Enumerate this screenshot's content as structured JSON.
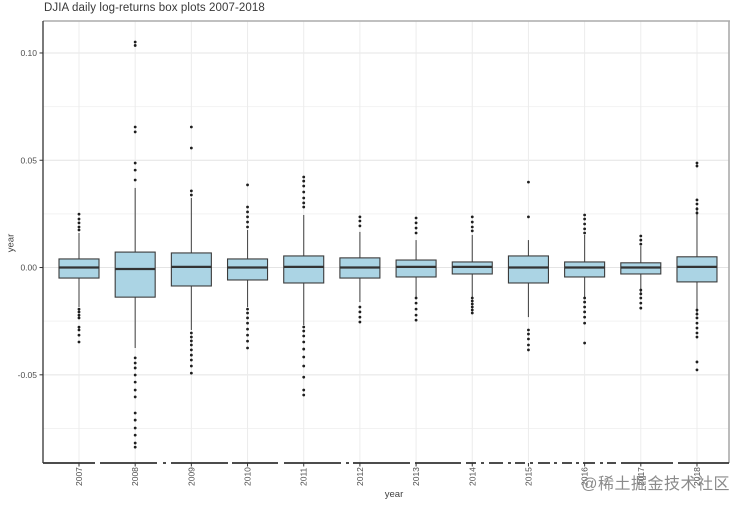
{
  "page": {
    "watermark": "@稀土掘金技术社区"
  },
  "chart_data": {
    "type": "boxplot",
    "title": "DJIA daily log-returns box plots 2007-2018",
    "xlabel": "year",
    "ylabel": "year",
    "grid": true,
    "legend": "none",
    "ylim": [
      -0.0911,
      0.1149
    ],
    "y_tick_labels": [
      "0.10",
      "0.05",
      "0.00",
      "-0.05"
    ],
    "y_tick_values": [
      0.1,
      0.05,
      0.0,
      -0.05
    ],
    "y_minor_tick_values": [
      0.075,
      0.025,
      -0.025,
      -0.075
    ],
    "categories": [
      "2007",
      "2008",
      "2009",
      "2010",
      "2011",
      "2012",
      "2013",
      "2014",
      "2015",
      "2016",
      "2017",
      "2018"
    ],
    "series": [
      {
        "year": "2007",
        "low": -0.0184,
        "q1": -0.0049,
        "median": 0.0,
        "q3": 0.004,
        "high": 0.0161,
        "outliers_high": [
          0.0249,
          0.0226,
          0.0208,
          0.0189,
          0.0175
        ],
        "outliers_low": [
          -0.0194,
          -0.0207,
          -0.0222,
          -0.0235,
          -0.0278,
          -0.0291,
          -0.0315,
          -0.0347
        ]
      },
      {
        "year": "2008",
        "low": -0.0375,
        "q1": -0.0138,
        "median": -0.0007,
        "q3": 0.0072,
        "high": 0.0371,
        "outliers_high": [
          0.1051,
          0.1035,
          0.0655,
          0.0632,
          0.0487,
          0.0454,
          0.0408
        ],
        "outliers_low": [
          -0.0421,
          -0.0445,
          -0.0468,
          -0.0501,
          -0.0534,
          -0.0571,
          -0.0603,
          -0.0678,
          -0.0711,
          -0.0748,
          -0.0781,
          -0.0818,
          -0.0837
        ]
      },
      {
        "year": "2009",
        "low": -0.0291,
        "q1": -0.0086,
        "median": 0.0003,
        "q3": 0.0068,
        "high": 0.0324,
        "outliers_high": [
          0.0655,
          0.0557,
          0.0357,
          0.0338
        ],
        "outliers_low": [
          -0.0305,
          -0.0324,
          -0.0342,
          -0.0361,
          -0.0384,
          -0.0408,
          -0.0431,
          -0.0459,
          -0.0492
        ]
      },
      {
        "year": "2010",
        "low": -0.0184,
        "q1": -0.0058,
        "median": 0.0,
        "q3": 0.004,
        "high": 0.0175,
        "outliers_high": [
          0.0385,
          0.0282,
          0.0259,
          0.0236,
          0.0212,
          0.0189
        ],
        "outliers_low": [
          -0.0194,
          -0.0212,
          -0.0235,
          -0.0259,
          -0.0287,
          -0.0315,
          -0.0343,
          -0.0375
        ]
      },
      {
        "year": "2011",
        "low": -0.0268,
        "q1": -0.0072,
        "median": 0.0003,
        "q3": 0.0054,
        "high": 0.0245,
        "outliers_high": [
          0.0422,
          0.0403,
          0.038,
          0.0352,
          0.0324,
          0.0301,
          0.0282
        ],
        "outliers_low": [
          -0.0277,
          -0.0296,
          -0.0319,
          -0.0347,
          -0.038,
          -0.0417,
          -0.0459,
          -0.0511,
          -0.0571,
          -0.0594
        ]
      },
      {
        "year": "2012",
        "low": -0.0161,
        "q1": -0.0049,
        "median": 0.0,
        "q3": 0.0045,
        "high": 0.0166,
        "outliers_high": [
          0.0236,
          0.0217,
          0.0194
        ],
        "outliers_low": [
          -0.0184,
          -0.0207,
          -0.0231,
          -0.0254
        ]
      },
      {
        "year": "2013",
        "low": -0.0138,
        "q1": -0.0044,
        "median": 0.0003,
        "q3": 0.0035,
        "high": 0.0128,
        "outliers_high": [
          0.0231,
          0.0208,
          0.0184,
          0.0161
        ],
        "outliers_low": [
          -0.0142,
          -0.0166,
          -0.0194,
          -0.0222,
          -0.0245
        ]
      },
      {
        "year": "2014",
        "low": -0.0138,
        "q1": -0.003,
        "median": 0.0003,
        "q3": 0.0026,
        "high": 0.0152,
        "outliers_high": [
          0.0236,
          0.0212,
          0.0189,
          0.0171
        ],
        "outliers_low": [
          -0.0142,
          -0.0156,
          -0.017,
          -0.0184,
          -0.0198,
          -0.0212
        ]
      },
      {
        "year": "2015",
        "low": -0.0231,
        "q1": -0.0072,
        "median": 0.0,
        "q3": 0.0054,
        "high": 0.0128,
        "outliers_high": [
          0.0398,
          0.0236
        ],
        "outliers_low": [
          -0.0291,
          -0.031,
          -0.0333,
          -0.0361,
          -0.0384
        ]
      },
      {
        "year": "2016",
        "low": -0.0138,
        "q1": -0.0044,
        "median": 0.0,
        "q3": 0.0026,
        "high": 0.0152,
        "outliers_high": [
          0.0245,
          0.0226,
          0.0203,
          0.018,
          0.0161
        ],
        "outliers_low": [
          -0.0142,
          -0.0161,
          -0.0184,
          -0.0207,
          -0.0231,
          -0.0259,
          -0.0352
        ]
      },
      {
        "year": "2017",
        "low": -0.0119,
        "q1": -0.003,
        "median": 0.0,
        "q3": 0.0022,
        "high": 0.01,
        "outliers_high": [
          0.0147,
          0.0128,
          0.0109
        ],
        "outliers_low": [
          -0.0105,
          -0.0123,
          -0.0142,
          -0.0166,
          -0.0189
        ]
      },
      {
        "year": "2018",
        "low": -0.0212,
        "q1": -0.0067,
        "median": 0.0003,
        "q3": 0.005,
        "high": 0.0282,
        "outliers_high": [
          0.0487,
          0.0473,
          0.0315,
          0.0296,
          0.0273,
          0.0254
        ],
        "outliers_low": [
          -0.0198,
          -0.0217,
          -0.0235,
          -0.0259,
          -0.0282,
          -0.0305,
          -0.0324,
          -0.044,
          -0.0477
        ]
      }
    ],
    "colors": {
      "box_fill": "#ABD4E4",
      "box_border": "#3b3b3b",
      "median": "#333333",
      "whisker": "#4f4f4f",
      "outlier": "#1e1e1e",
      "grid_major": "#e4e4e4",
      "grid_minor": "#f2f2f2",
      "grid_vertical": "#ececec",
      "axis_line": "#333333",
      "panel_border": "#acacac",
      "tick_text": "#4d4d4d",
      "background": "#ffffff"
    }
  }
}
